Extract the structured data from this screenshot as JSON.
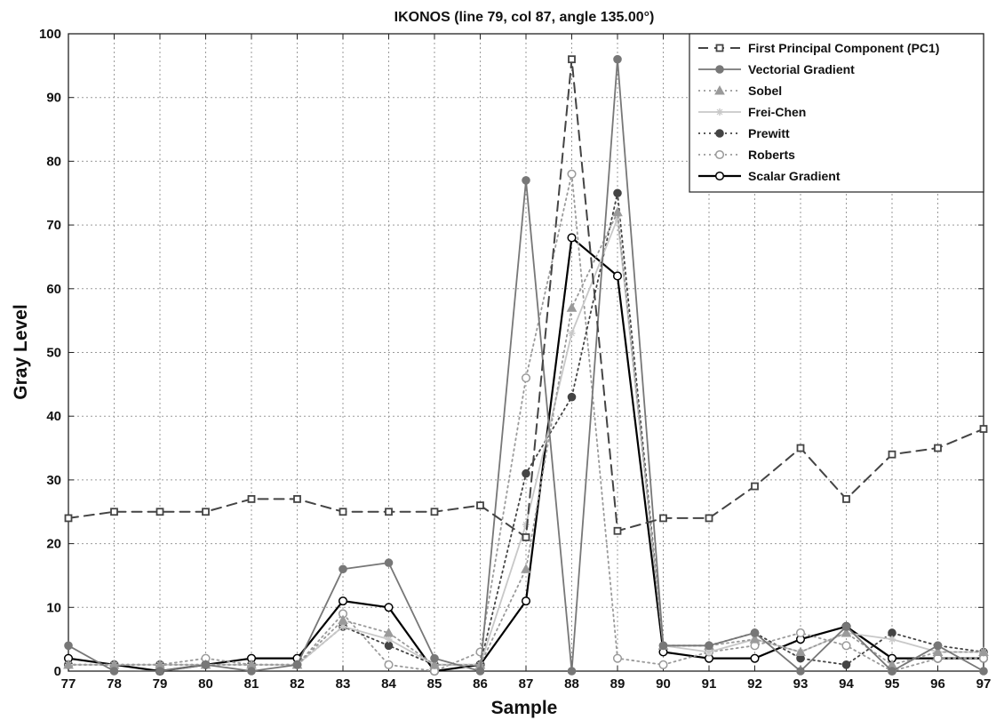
{
  "chart_data": {
    "type": "line",
    "title": "IKONOS (line 79, col 87, angle 135.00°)",
    "xlabel": "Sample",
    "ylabel": "Gray Level",
    "x": [
      77,
      78,
      79,
      80,
      81,
      82,
      83,
      84,
      85,
      86,
      87,
      88,
      89,
      90,
      91,
      92,
      93,
      94,
      95,
      96,
      97
    ],
    "xlim": [
      77,
      97
    ],
    "ylim": [
      0,
      100
    ],
    "yticks": [
      0,
      10,
      20,
      30,
      40,
      50,
      60,
      70,
      80,
      90,
      100
    ],
    "grid": true,
    "legend_position": "top-right",
    "series": [
      {
        "name": "First Principal Component (PC1)",
        "values": [
          24,
          25,
          25,
          25,
          27,
          27,
          25,
          25,
          25,
          26,
          21,
          96,
          22,
          24,
          24,
          29,
          35,
          27,
          34,
          35,
          38
        ],
        "color": "#444444",
        "dash": "dashed",
        "marker": "square"
      },
      {
        "name": "Vectorial Gradient",
        "values": [
          4,
          0,
          0,
          1,
          0,
          1,
          16,
          17,
          2,
          0,
          77,
          0,
          96,
          4,
          4,
          6,
          0,
          7,
          0,
          4,
          0
        ],
        "color": "#777777",
        "dash": "solid",
        "marker": "filled-circle"
      },
      {
        "name": "Sobel",
        "values": [
          1,
          1,
          1,
          1,
          1,
          1,
          8,
          6,
          1,
          1,
          16,
          57,
          72,
          4,
          4,
          5,
          3,
          6,
          1,
          3,
          3
        ],
        "color": "#9a9a9a",
        "dash": "dotted",
        "marker": "triangle"
      },
      {
        "name": "Frei-Chen",
        "values": [
          1,
          1,
          1,
          1,
          1,
          1,
          7,
          5,
          1,
          1,
          23,
          53,
          71,
          4,
          3,
          5,
          3,
          6,
          5,
          3,
          3
        ],
        "color": "#c8c8c8",
        "dash": "solid",
        "marker": "star"
      },
      {
        "name": "Prewitt",
        "values": [
          1,
          1,
          1,
          1,
          1,
          1,
          7,
          4,
          1,
          1,
          31,
          43,
          75,
          4,
          4,
          6,
          2,
          1,
          6,
          4,
          3
        ],
        "color": "#444444",
        "dash": "dotted",
        "marker": "filled-circle"
      },
      {
        "name": "Roberts",
        "values": [
          1,
          1,
          1,
          2,
          1,
          1,
          9,
          1,
          0,
          3,
          46,
          78,
          2,
          1,
          3,
          4,
          6,
          4,
          0,
          2,
          2
        ],
        "color": "#9a9a9a",
        "dash": "dotted",
        "marker": "open-circle"
      },
      {
        "name": "Scalar Gradient",
        "values": [
          2,
          1,
          0,
          1,
          2,
          2,
          11,
          10,
          0,
          1,
          11,
          68,
          62,
          3,
          2,
          2,
          5,
          7,
          2,
          2,
          2
        ],
        "color": "#000000",
        "dash": "solid",
        "marker": "open-circle"
      }
    ]
  }
}
